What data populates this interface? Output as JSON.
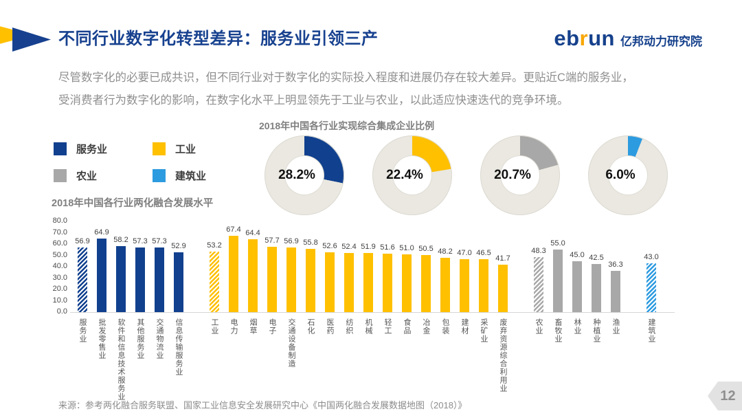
{
  "header": {
    "title": "不同行业数字化转型差异：服务业引领三产",
    "logo": {
      "brand_prefix": "eb",
      "brand_accent": "r",
      "brand_suffix": "un",
      "org": "亿邦动力研究院"
    }
  },
  "intro": {
    "line1": "尽管数字化的必要已成共识，但不同行业对于数字化的实际投入程度和进展仍存在较大差异。更贴近C端的服务业，",
    "line2": "受消费者行为数字化的影响，在数字化水平上明显领先于工业与农业，以此适应快速迭代的竞争环境。"
  },
  "legend": {
    "items": [
      {
        "label": "服务业",
        "color": "#11408E"
      },
      {
        "label": "工业",
        "color": "#FFC000"
      },
      {
        "label": "农业",
        "color": "#A8A8A8"
      },
      {
        "label": "建筑业",
        "color": "#2D9BE0"
      }
    ]
  },
  "chart_data": [
    {
      "type": "pie",
      "style": "donut",
      "title": "2018年中国各行业实现综合集成企业比例",
      "remainder_color": "#EAE8E0",
      "series": [
        {
          "name": "服务业",
          "value": 28.2,
          "label": "28.2%",
          "color": "#11408E"
        },
        {
          "name": "工业",
          "value": 22.4,
          "label": "22.4%",
          "color": "#FFC000"
        },
        {
          "name": "农业",
          "value": 20.7,
          "label": "20.7%",
          "color": "#A8A8A8"
        },
        {
          "name": "建筑业",
          "value": 6.0,
          "label": "6.0%",
          "color": "#2D9BE0"
        }
      ]
    },
    {
      "type": "bar",
      "title": "2018年中国各行业两化融合发展水平",
      "ylim": [
        0,
        80
      ],
      "yticks": [
        "80.0",
        "70.0",
        "60.0",
        "50.0",
        "40.0",
        "30.0",
        "20.0",
        "10.0",
        "0.0"
      ],
      "grid": false,
      "value_labels": true,
      "groups": [
        {
          "name": "服务业",
          "color": "#11408E",
          "bars": [
            {
              "label": "服务业",
              "value": 56.9,
              "hatched": true
            },
            {
              "label": "批发零售业",
              "value": 64.9
            },
            {
              "label": "软件和信息技术服务业",
              "value": 58.2
            },
            {
              "label": "其他服务业",
              "value": 57.3
            },
            {
              "label": "交通物流业",
              "value": 57.3
            },
            {
              "label": "信息传输服务业",
              "value": 52.9
            }
          ]
        },
        {
          "name": "工业",
          "color": "#FFC000",
          "bars": [
            {
              "label": "工业",
              "value": 53.2,
              "hatched": true
            },
            {
              "label": "电力",
              "value": 67.4
            },
            {
              "label": "烟草",
              "value": 64.4
            },
            {
              "label": "电子",
              "value": 57.7
            },
            {
              "label": "交通设备制造",
              "value": 56.9
            },
            {
              "label": "石化",
              "value": 55.8
            },
            {
              "label": "医药",
              "value": 52.6
            },
            {
              "label": "纺织",
              "value": 52.4
            },
            {
              "label": "机械",
              "value": 51.9
            },
            {
              "label": "轻工",
              "value": 51.6
            },
            {
              "label": "食品",
              "value": 51.0
            },
            {
              "label": "冶金",
              "value": 50.5
            },
            {
              "label": "包装",
              "value": 48.2
            },
            {
              "label": "建材",
              "value": 47.0
            },
            {
              "label": "采矿业",
              "value": 46.5
            },
            {
              "label": "废弃资源综合利用业",
              "value": 41.7
            }
          ]
        },
        {
          "name": "农业",
          "color": "#A8A8A8",
          "bars": [
            {
              "label": "农业",
              "value": 48.3,
              "hatched": true
            },
            {
              "label": "畜牧业",
              "value": 55.0
            },
            {
              "label": "林业",
              "value": 45.0
            },
            {
              "label": "种植业",
              "value": 42.5
            },
            {
              "label": "渔业",
              "value": 36.3
            }
          ]
        },
        {
          "name": "建筑业",
          "color": "#2D9BE0",
          "bars": [
            {
              "label": "建筑业",
              "value": 43.0,
              "hatched": true
            }
          ]
        }
      ]
    }
  ],
  "footer": {
    "source": "来源：参考两化融合服务联盟、国家工业信息安全发展研究中心《中国两化融合发展数据地图（2018）》",
    "page": "12"
  }
}
